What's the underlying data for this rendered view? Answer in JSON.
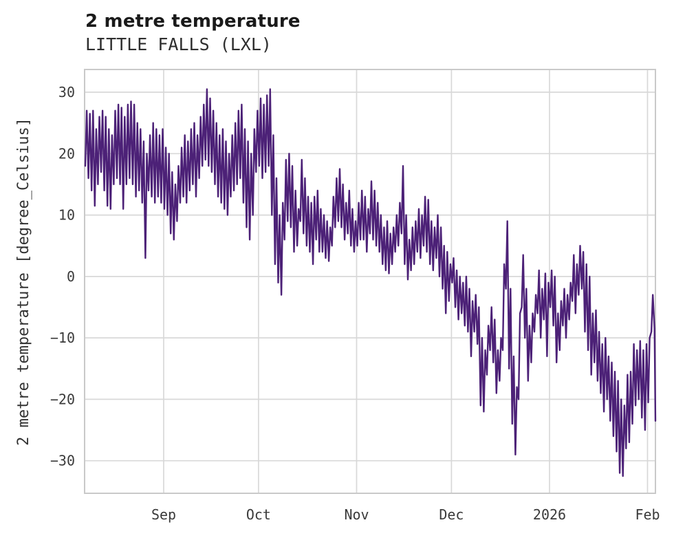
{
  "page": {
    "background": "#ffffff"
  },
  "header": {
    "title": "2 metre temperature",
    "subtitle": "LITTLE FALLS (LXL)"
  },
  "chart_data": {
    "type": "line",
    "title": "2 metre temperature",
    "subtitle": "LITTLE FALLS (LXL)",
    "series_name": "2 metre temperature",
    "xlabel": "",
    "ylabel": "2 metre temperature [degree_Celsius]",
    "legend": "none",
    "grid": true,
    "line_color": "#4c2177",
    "grid_color": "#d8d8d8",
    "border_color": "#c9c9c9",
    "tick_text_color": "#3a3a3a",
    "y_ticks": [
      30,
      20,
      10,
      0,
      -10,
      -20,
      -30
    ],
    "ylim": [
      -35.3,
      33.7
    ],
    "x_axis": {
      "tick_labels": [
        "Sep",
        "Oct",
        "Nov",
        "Dec",
        "2026",
        "Feb"
      ],
      "tick_day_offsets": [
        25,
        55,
        86,
        116,
        147,
        178
      ],
      "total_days": 180.5,
      "start_day": "≈ Aug 7",
      "end_day": "≈ Feb 3"
    },
    "daily_envelope": {
      "description": "Approximate daily max/min 2m temperature (degC) read from the plot; day 0 ≈ Aug 7, hourly line oscillates between them",
      "max": [
        27,
        26.5,
        27,
        24,
        26,
        27,
        26,
        24,
        23,
        27,
        28,
        27.5,
        26,
        28,
        28.5,
        28,
        25,
        24,
        22,
        20,
        23,
        25,
        24,
        23,
        24,
        21,
        20,
        17,
        15,
        18,
        21,
        23,
        22,
        24,
        25,
        23,
        26,
        28,
        30.5,
        29,
        27,
        25,
        23,
        24,
        22,
        20,
        23,
        25,
        27,
        28,
        24,
        22,
        20,
        24,
        27,
        29,
        28,
        29.5,
        30.5,
        23,
        16,
        10,
        12,
        19,
        20,
        18,
        14,
        11,
        19,
        16,
        13,
        12,
        13,
        14,
        11,
        10,
        9,
        8,
        13,
        16,
        17.5,
        15,
        12,
        14,
        11,
        9,
        12,
        14,
        13,
        11,
        15.5,
        14,
        12,
        10,
        8,
        9,
        7,
        8,
        10,
        12,
        18,
        10,
        6,
        8,
        9,
        11,
        10,
        13,
        12.5,
        9,
        8,
        10,
        8,
        5,
        4,
        2,
        3,
        1,
        0,
        -1,
        0,
        -2,
        -4,
        -3,
        -5,
        -10,
        -12,
        -8,
        -5,
        -7,
        -12,
        -10,
        2,
        9,
        -2,
        -13,
        -18,
        -6,
        3.5,
        -2,
        -8,
        -6,
        -3,
        1,
        -2,
        0.5,
        -1,
        1,
        0,
        -6,
        -4,
        -2,
        -3,
        -1,
        3.5,
        2,
        5,
        4,
        2,
        0,
        -6,
        -5.5,
        -9,
        -11,
        -10,
        -13,
        -14,
        -15.5,
        -17,
        -20,
        -21,
        -16,
        -15.5,
        -11,
        -12,
        -10.5,
        -12,
        -11,
        -10,
        -3,
        -8.5
      ],
      "min": [
        18,
        16,
        14,
        11.5,
        15,
        17,
        14,
        11.5,
        11,
        15,
        16,
        15,
        11,
        15,
        16,
        15,
        13,
        14,
        12,
        3,
        14,
        13,
        12,
        13,
        12,
        11,
        10,
        7,
        6,
        9,
        12,
        13,
        12,
        14,
        15,
        13,
        16,
        18,
        19,
        18,
        17,
        15,
        13,
        12,
        11,
        10,
        13,
        14,
        15,
        16,
        12,
        8,
        6,
        10,
        17,
        18,
        16,
        17,
        18,
        10,
        2,
        -1,
        -3,
        6,
        9,
        8,
        4,
        5,
        9,
        7,
        5,
        4,
        2,
        6,
        4,
        4,
        3,
        2.5,
        5,
        8,
        9,
        8,
        6,
        7,
        5,
        4,
        5,
        6,
        6,
        4,
        7,
        6,
        5,
        4,
        2,
        1,
        0.5,
        2,
        4,
        5,
        7,
        2,
        -0.5,
        1,
        2,
        4,
        3,
        5,
        4,
        2,
        1,
        3,
        0,
        -2,
        -6,
        -4,
        -1,
        -5,
        -7,
        -6,
        -8,
        -9,
        -13,
        -9,
        -11,
        -21,
        -22,
        -16,
        -12,
        -14,
        -19,
        -17,
        -12,
        -2,
        -15,
        -24,
        -29,
        -20,
        -5,
        -10,
        -17,
        -14,
        -9,
        -6,
        -10,
        -7,
        -13,
        -5,
        -8,
        -14,
        -12,
        -8,
        -10,
        -7,
        -4,
        -6,
        -3,
        -2,
        -9,
        -12,
        -16,
        -14,
        -17,
        -19,
        -22,
        -20,
        -23.5,
        -26,
        -28.5,
        -32,
        -32.5,
        -28,
        -27,
        -24,
        -21,
        -20,
        -23,
        -25,
        -20.5,
        -9,
        -23.5
      ]
    }
  }
}
